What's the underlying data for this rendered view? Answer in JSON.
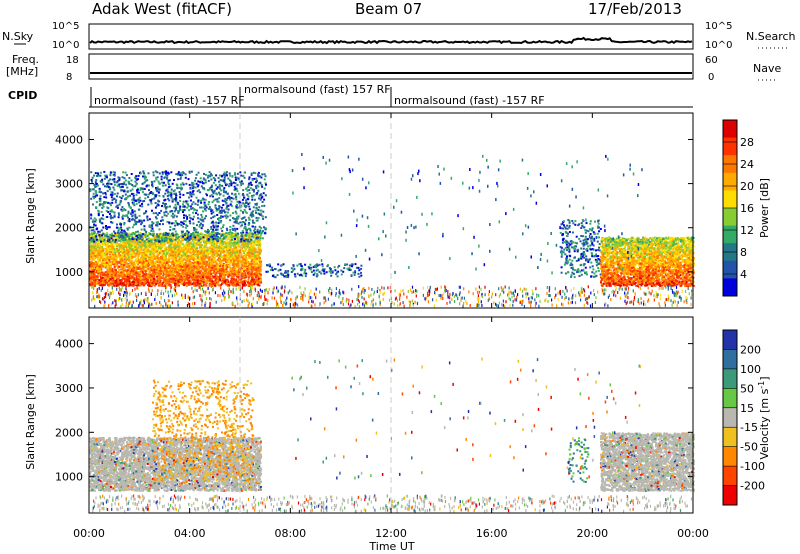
{
  "header": {
    "station": "Adak West (fitACF)",
    "beam": "Beam 07",
    "date": "17/Feb/2013"
  },
  "top_panels": {
    "nsky_label": "N.Sky",
    "nsky_ticks": [
      "10^5",
      "10^0"
    ],
    "nsearch_label": "N.Search",
    "nsearch_ticks": [
      "10^5",
      "10^0"
    ],
    "freq_label": "Freq.",
    "freq_unit": "[MHz]",
    "freq_ticks": [
      "18",
      "8"
    ],
    "nave_label": "Nave",
    "nave_ticks": [
      "60",
      "0"
    ],
    "cpid_label": "CPID"
  },
  "cpid_segments": [
    {
      "label": "normalsound (fast) -157 RF",
      "start_hr": 0
    },
    {
      "label": "normalsound (fast) 157 RF",
      "start_hr": 6
    },
    {
      "label": "normalsound (fast) -157 RF",
      "start_hr": 12
    }
  ],
  "axes": {
    "ylabel": "Slant Range [km]",
    "yticks": [
      "1000",
      "2000",
      "3000",
      "4000"
    ],
    "ytick_values": [
      1000,
      2000,
      3000,
      4000
    ],
    "xlabel": "Time UT",
    "xticks": [
      "00:00",
      "04:00",
      "08:00",
      "12:00",
      "16:00",
      "20:00",
      "00:00"
    ],
    "xtick_hours": [
      0,
      4,
      8,
      12,
      16,
      20,
      24
    ]
  },
  "power_colorbar": {
    "label": "Power [dB]",
    "ticks": [
      "28",
      "24",
      "20",
      "16",
      "12",
      "8",
      "4"
    ],
    "colors": [
      "#dd0000",
      "#ff3300",
      "#ff7700",
      "#ffaa00",
      "#ffdd00",
      "#88cc33",
      "#33aa66",
      "#227788",
      "#2255aa",
      "#0000dd"
    ]
  },
  "velocity_colorbar": {
    "label": "Velocity [m s^-1]",
    "ticks": [
      "200",
      "100",
      "50",
      "15",
      "-15",
      "-50",
      "-100",
      "-200"
    ],
    "colors": [
      "#2233aa",
      "#2f6fa0",
      "#3a9a7a",
      "#66c844",
      "#b8b8b0",
      "#f0c020",
      "#ff8800",
      "#ff4400",
      "#ee0000"
    ]
  },
  "chart_data": [
    {
      "type": "heatmap",
      "title": "Power",
      "xlabel": "Time UT",
      "ylabel": "Slant Range [km]",
      "xlim_hours": [
        0,
        24
      ],
      "ylim_km": [
        180,
        4600
      ],
      "regions": [
        {
          "t0": 0,
          "t1": 6.8,
          "r0": 700,
          "r1": 1900,
          "level": "high"
        },
        {
          "t0": 0,
          "t1": 7.0,
          "r0": 1700,
          "r1": 3300,
          "level": "low"
        },
        {
          "t0": 7.0,
          "t1": 10.8,
          "r0": 900,
          "r1": 1200,
          "level": "low"
        },
        {
          "t0": 18.7,
          "t1": 20.3,
          "r0": 900,
          "r1": 2200,
          "level": "low"
        },
        {
          "t0": 20.3,
          "t1": 24,
          "r0": 700,
          "r1": 1800,
          "level": "high"
        }
      ]
    },
    {
      "type": "heatmap",
      "title": "Velocity",
      "xlabel": "Time UT",
      "ylabel": "Slant Range [km]",
      "xlim_hours": [
        0,
        24
      ],
      "ylim_km": [
        180,
        4600
      ],
      "regions": [
        {
          "t0": 0,
          "t1": 6.8,
          "r0": 700,
          "r1": 1900,
          "v": "ground"
        },
        {
          "t0": 2.5,
          "t1": 6.5,
          "r0": 900,
          "r1": 3200,
          "v": "negative"
        },
        {
          "t0": 19.0,
          "t1": 19.8,
          "r0": 900,
          "r1": 1900,
          "v": "positive"
        },
        {
          "t0": 20.3,
          "t1": 24,
          "r0": 700,
          "r1": 2000,
          "v": "ground"
        }
      ]
    }
  ]
}
